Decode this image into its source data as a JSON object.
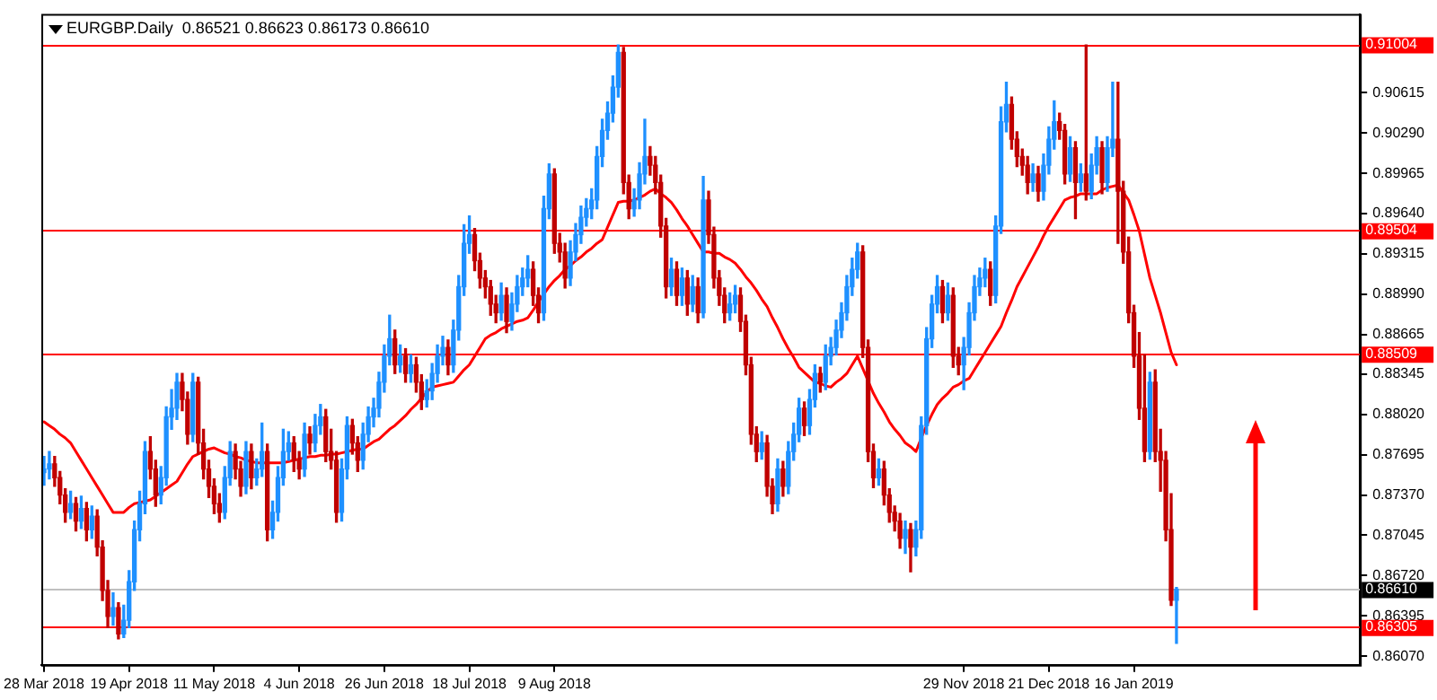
{
  "chart_data": {
    "type": "candlestick",
    "title": "EURGBP.Daily  0.86521 0.86623 0.86173 0.86610",
    "categories": [
      "28 Mar 2018",
      null,
      null,
      null,
      null,
      null,
      null,
      null,
      null,
      null,
      null,
      null,
      null,
      null,
      null,
      null,
      "19 Apr 2018",
      null,
      null,
      null,
      null,
      null,
      null,
      null,
      null,
      null,
      null,
      null,
      null,
      null,
      null,
      null,
      "11 May 2018",
      null,
      null,
      null,
      null,
      null,
      null,
      null,
      null,
      null,
      null,
      null,
      null,
      null,
      null,
      null,
      "4 Jun 2018",
      null,
      null,
      null,
      null,
      null,
      null,
      null,
      null,
      null,
      null,
      null,
      null,
      null,
      null,
      null,
      "26 Jun 2018",
      null,
      null,
      null,
      null,
      null,
      null,
      null,
      null,
      null,
      null,
      null,
      null,
      null,
      null,
      null,
      "18 Jul 2018",
      null,
      null,
      null,
      null,
      null,
      null,
      null,
      null,
      null,
      null,
      null,
      null,
      null,
      null,
      null,
      "9 Aug 2018",
      null,
      null,
      null,
      null,
      null,
      null,
      null,
      null,
      null,
      null,
      null,
      null,
      null,
      null,
      null,
      null,
      null,
      null,
      null,
      null,
      null,
      null,
      null,
      null,
      null,
      null,
      null,
      null,
      null,
      null,
      null,
      null,
      null,
      null,
      null,
      null,
      null,
      null,
      null,
      null,
      null,
      null,
      null,
      null,
      null,
      null,
      null,
      null,
      null,
      null,
      null,
      null,
      null,
      null,
      null,
      null,
      null,
      null,
      null,
      null,
      null,
      null,
      null,
      null,
      null,
      null,
      null,
      null,
      null,
      null,
      null,
      null,
      null,
      null,
      null,
      null,
      "29 Nov 2018",
      null,
      null,
      null,
      null,
      null,
      null,
      null,
      null,
      null,
      null,
      null,
      null,
      null,
      null,
      null,
      "21 Dec 2018",
      null,
      null,
      null,
      null,
      null,
      null,
      null,
      null,
      null,
      null,
      null,
      null,
      null,
      null,
      null,
      "16 Jan 2019",
      null,
      null,
      null,
      null,
      null,
      null,
      null,
      null
    ],
    "ohlc": [
      [
        0.8755,
        0.8768,
        0.8745,
        0.8758
      ],
      [
        0.8758,
        0.8772,
        0.875,
        0.8762
      ],
      [
        0.8762,
        0.8768,
        0.8744,
        0.8751
      ],
      [
        0.8751,
        0.8756,
        0.873,
        0.8737
      ],
      [
        0.8737,
        0.8742,
        0.8715,
        0.8723
      ],
      [
        0.8723,
        0.874,
        0.8718,
        0.873
      ],
      [
        0.873,
        0.8735,
        0.8708,
        0.8716
      ],
      [
        0.8716,
        0.8736,
        0.871,
        0.8726
      ],
      [
        0.8726,
        0.8731,
        0.87,
        0.8709
      ],
      [
        0.8709,
        0.8728,
        0.8702,
        0.872
      ],
      [
        0.872,
        0.8725,
        0.8688,
        0.8695
      ],
      [
        0.8695,
        0.87,
        0.8652,
        0.866
      ],
      [
        0.866,
        0.8668,
        0.863,
        0.8639
      ],
      [
        0.8639,
        0.8658,
        0.8632,
        0.8646
      ],
      [
        0.8646,
        0.865,
        0.8621,
        0.8625
      ],
      [
        0.8625,
        0.8648,
        0.8622,
        0.8636
      ],
      [
        0.8636,
        0.8676,
        0.863,
        0.8667
      ],
      [
        0.8667,
        0.8716,
        0.866,
        0.8709
      ],
      [
        0.8709,
        0.874,
        0.87,
        0.873
      ],
      [
        0.873,
        0.878,
        0.8722,
        0.8772
      ],
      [
        0.8772,
        0.8784,
        0.875,
        0.8758
      ],
      [
        0.8758,
        0.8765,
        0.8728,
        0.8737
      ],
      [
        0.8737,
        0.876,
        0.873,
        0.8751
      ],
      [
        0.8751,
        0.8808,
        0.8745,
        0.88
      ],
      [
        0.88,
        0.8822,
        0.879,
        0.8807
      ],
      [
        0.8807,
        0.8835,
        0.8798,
        0.8828
      ],
      [
        0.8828,
        0.8835,
        0.8805,
        0.8814
      ],
      [
        0.8814,
        0.882,
        0.8778,
        0.8786
      ],
      [
        0.8786,
        0.8835,
        0.878,
        0.8828
      ],
      [
        0.8828,
        0.8832,
        0.877,
        0.8779
      ],
      [
        0.8779,
        0.879,
        0.875,
        0.8758
      ],
      [
        0.8758,
        0.8765,
        0.8735,
        0.8744
      ],
      [
        0.8744,
        0.875,
        0.8722,
        0.873
      ],
      [
        0.873,
        0.8738,
        0.8715,
        0.8723
      ],
      [
        0.8723,
        0.876,
        0.8718,
        0.8751
      ],
      [
        0.8751,
        0.878,
        0.8745,
        0.8772
      ],
      [
        0.8772,
        0.8778,
        0.875,
        0.8758
      ],
      [
        0.8758,
        0.8764,
        0.8736,
        0.8744
      ],
      [
        0.8744,
        0.878,
        0.8738,
        0.8772
      ],
      [
        0.8772,
        0.8778,
        0.8742,
        0.8751
      ],
      [
        0.8751,
        0.8766,
        0.8745,
        0.8758
      ],
      [
        0.8758,
        0.8795,
        0.8752,
        0.8772
      ],
      [
        0.8772,
        0.8778,
        0.87,
        0.8709
      ],
      [
        0.8709,
        0.8732,
        0.8702,
        0.8723
      ],
      [
        0.8723,
        0.876,
        0.8716,
        0.8751
      ],
      [
        0.8751,
        0.879,
        0.8745,
        0.8772
      ],
      [
        0.8772,
        0.8788,
        0.8765,
        0.8779
      ],
      [
        0.8779,
        0.8784,
        0.8756,
        0.8765
      ],
      [
        0.8765,
        0.8772,
        0.875,
        0.8758
      ],
      [
        0.8758,
        0.8795,
        0.8752,
        0.8786
      ],
      [
        0.8786,
        0.8792,
        0.877,
        0.8779
      ],
      [
        0.8779,
        0.8802,
        0.8772,
        0.8793
      ],
      [
        0.8793,
        0.881,
        0.8786,
        0.88
      ],
      [
        0.88,
        0.8806,
        0.8764,
        0.8772
      ],
      [
        0.8772,
        0.879,
        0.8758,
        0.8765
      ],
      [
        0.8765,
        0.8772,
        0.8715,
        0.8723
      ],
      [
        0.8723,
        0.8766,
        0.8716,
        0.8758
      ],
      [
        0.8758,
        0.88,
        0.875,
        0.8793
      ],
      [
        0.8793,
        0.8798,
        0.877,
        0.8779
      ],
      [
        0.8779,
        0.8784,
        0.8756,
        0.8765
      ],
      [
        0.8765,
        0.8795,
        0.8758,
        0.8786
      ],
      [
        0.8786,
        0.8808,
        0.878,
        0.88
      ],
      [
        0.88,
        0.8815,
        0.8792,
        0.8807
      ],
      [
        0.8807,
        0.8836,
        0.88,
        0.8828
      ],
      [
        0.8828,
        0.8858,
        0.882,
        0.8849
      ],
      [
        0.8849,
        0.8882,
        0.8842,
        0.8863
      ],
      [
        0.8863,
        0.887,
        0.8835,
        0.8842
      ],
      [
        0.8842,
        0.8858,
        0.8836,
        0.8849
      ],
      [
        0.8849,
        0.8855,
        0.8828,
        0.8835
      ],
      [
        0.8835,
        0.885,
        0.8828,
        0.8842
      ],
      [
        0.8842,
        0.8848,
        0.882,
        0.8828
      ],
      [
        0.8828,
        0.8834,
        0.8806,
        0.8814
      ],
      [
        0.8814,
        0.883,
        0.8808,
        0.8821
      ],
      [
        0.8821,
        0.8843,
        0.8814,
        0.8835
      ],
      [
        0.8835,
        0.8858,
        0.8828,
        0.8849
      ],
      [
        0.8849,
        0.8865,
        0.8842,
        0.8856
      ],
      [
        0.8856,
        0.8862,
        0.8834,
        0.8842
      ],
      [
        0.8842,
        0.8878,
        0.8836,
        0.887
      ],
      [
        0.887,
        0.8914,
        0.8862,
        0.8905
      ],
      [
        0.8905,
        0.8955,
        0.8898,
        0.894
      ],
      [
        0.894,
        0.8962,
        0.8932,
        0.8947
      ],
      [
        0.8947,
        0.8952,
        0.8918,
        0.8926
      ],
      [
        0.8926,
        0.8932,
        0.8904,
        0.8912
      ],
      [
        0.8912,
        0.8918,
        0.8896,
        0.8905
      ],
      [
        0.8905,
        0.891,
        0.8882,
        0.8891
      ],
      [
        0.8891,
        0.8898,
        0.8876,
        0.8884
      ],
      [
        0.8884,
        0.8908,
        0.8878,
        0.8898
      ],
      [
        0.8898,
        0.8904,
        0.8868,
        0.8877
      ],
      [
        0.8877,
        0.89,
        0.887,
        0.8891
      ],
      [
        0.8891,
        0.8914,
        0.8885,
        0.8905
      ],
      [
        0.8905,
        0.892,
        0.8898,
        0.8912
      ],
      [
        0.8912,
        0.893,
        0.8905,
        0.8919
      ],
      [
        0.8919,
        0.8925,
        0.889,
        0.8898
      ],
      [
        0.8898,
        0.8904,
        0.8876,
        0.8884
      ],
      [
        0.8884,
        0.8978,
        0.8878,
        0.8968
      ],
      [
        0.8968,
        0.9004,
        0.896,
        0.8996
      ],
      [
        0.8996,
        0.9,
        0.8932,
        0.894
      ],
      [
        0.894,
        0.8948,
        0.8925,
        0.8933
      ],
      [
        0.8933,
        0.894,
        0.8904,
        0.8912
      ],
      [
        0.8912,
        0.8942,
        0.8906,
        0.8933
      ],
      [
        0.8933,
        0.8956,
        0.8926,
        0.8947
      ],
      [
        0.8947,
        0.897,
        0.894,
        0.8961
      ],
      [
        0.8961,
        0.8976,
        0.8954,
        0.8968
      ],
      [
        0.8968,
        0.8984,
        0.896,
        0.8975
      ],
      [
        0.8975,
        0.9018,
        0.8968,
        0.901
      ],
      [
        0.901,
        0.904,
        0.9002,
        0.9031
      ],
      [
        0.9031,
        0.9054,
        0.9024,
        0.9045
      ],
      [
        0.9045,
        0.9075,
        0.9038,
        0.9066
      ],
      [
        0.9066,
        0.91,
        0.9058,
        0.9094
      ],
      [
        0.9094,
        0.9098,
        0.898,
        0.8989
      ],
      [
        0.8989,
        0.8995,
        0.896,
        0.8968
      ],
      [
        0.8968,
        0.8984,
        0.8962,
        0.8975
      ],
      [
        0.8975,
        0.9005,
        0.8968,
        0.8996
      ],
      [
        0.8996,
        0.904,
        0.8988,
        0.901
      ],
      [
        0.901,
        0.9018,
        0.8995,
        0.9003
      ],
      [
        0.9003,
        0.901,
        0.898,
        0.8989
      ],
      [
        0.8989,
        0.8995,
        0.8945,
        0.8954
      ],
      [
        0.8954,
        0.896,
        0.8896,
        0.8905
      ],
      [
        0.8905,
        0.8928,
        0.8898,
        0.8919
      ],
      [
        0.8919,
        0.8925,
        0.889,
        0.8898
      ],
      [
        0.8898,
        0.892,
        0.889,
        0.8912
      ],
      [
        0.8912,
        0.8918,
        0.8882,
        0.8891
      ],
      [
        0.8891,
        0.8914,
        0.8885,
        0.8905
      ],
      [
        0.8905,
        0.8912,
        0.8876,
        0.8884
      ],
      [
        0.8884,
        0.8994,
        0.888,
        0.8975
      ],
      [
        0.8975,
        0.8982,
        0.894,
        0.8947
      ],
      [
        0.8947,
        0.8953,
        0.8904,
        0.8912
      ],
      [
        0.8912,
        0.8918,
        0.889,
        0.8898
      ],
      [
        0.8898,
        0.8904,
        0.8876,
        0.8884
      ],
      [
        0.8884,
        0.89,
        0.8878,
        0.8891
      ],
      [
        0.8891,
        0.8906,
        0.8884,
        0.8898
      ],
      [
        0.8898,
        0.8904,
        0.8869,
        0.8877
      ],
      [
        0.8877,
        0.8882,
        0.8834,
        0.8842
      ],
      [
        0.8842,
        0.8848,
        0.8778,
        0.8786
      ],
      [
        0.8786,
        0.8792,
        0.8764,
        0.8772
      ],
      [
        0.8772,
        0.8788,
        0.8766,
        0.8779
      ],
      [
        0.8779,
        0.8785,
        0.8736,
        0.8744
      ],
      [
        0.8744,
        0.875,
        0.8722,
        0.873
      ],
      [
        0.873,
        0.8766,
        0.8724,
        0.8758
      ],
      [
        0.8758,
        0.8764,
        0.8736,
        0.8744
      ],
      [
        0.8744,
        0.878,
        0.8738,
        0.8772
      ],
      [
        0.8772,
        0.8795,
        0.8765,
        0.8786
      ],
      [
        0.8786,
        0.8815,
        0.878,
        0.8807
      ],
      [
        0.8807,
        0.8812,
        0.8785,
        0.8793
      ],
      [
        0.8793,
        0.8822,
        0.8786,
        0.8814
      ],
      [
        0.8814,
        0.8842,
        0.8808,
        0.8835
      ],
      [
        0.8835,
        0.884,
        0.882,
        0.8828
      ],
      [
        0.8828,
        0.8858,
        0.8822,
        0.8849
      ],
      [
        0.8849,
        0.8864,
        0.8842,
        0.8856
      ],
      [
        0.8856,
        0.8878,
        0.885,
        0.887
      ],
      [
        0.887,
        0.8892,
        0.8864,
        0.8884
      ],
      [
        0.8884,
        0.8914,
        0.8878,
        0.8905
      ],
      [
        0.8905,
        0.8928,
        0.8898,
        0.8919
      ],
      [
        0.8919,
        0.894,
        0.8912,
        0.8933
      ],
      [
        0.8933,
        0.8938,
        0.8848,
        0.8856
      ],
      [
        0.8856,
        0.8862,
        0.8764,
        0.8772
      ],
      [
        0.8772,
        0.8778,
        0.8743,
        0.8751
      ],
      [
        0.8751,
        0.8766,
        0.8745,
        0.8758
      ],
      [
        0.8758,
        0.8764,
        0.8729,
        0.8737
      ],
      [
        0.8737,
        0.8742,
        0.8715,
        0.8723
      ],
      [
        0.8723,
        0.8728,
        0.8708,
        0.8716
      ],
      [
        0.8716,
        0.8722,
        0.8694,
        0.8702
      ],
      [
        0.8702,
        0.8716,
        0.869,
        0.8709
      ],
      [
        0.8709,
        0.8714,
        0.8675,
        0.8695
      ],
      [
        0.8695,
        0.8716,
        0.8688,
        0.8709
      ],
      [
        0.8709,
        0.88,
        0.8702,
        0.8793
      ],
      [
        0.8793,
        0.8872,
        0.8786,
        0.8863
      ],
      [
        0.8863,
        0.8898,
        0.8856,
        0.8891
      ],
      [
        0.8891,
        0.8914,
        0.8884,
        0.8905
      ],
      [
        0.8905,
        0.891,
        0.8876,
        0.8884
      ],
      [
        0.8884,
        0.8908,
        0.8878,
        0.8898
      ],
      [
        0.8898,
        0.8904,
        0.884,
        0.8849
      ],
      [
        0.8849,
        0.8856,
        0.8834,
        0.8842
      ],
      [
        0.8842,
        0.8864,
        0.8822,
        0.8856
      ],
      [
        0.8856,
        0.8892,
        0.885,
        0.8884
      ],
      [
        0.8884,
        0.8914,
        0.8878,
        0.8905
      ],
      [
        0.8905,
        0.892,
        0.8898,
        0.8912
      ],
      [
        0.8912,
        0.8928,
        0.8905,
        0.8919
      ],
      [
        0.8919,
        0.8925,
        0.889,
        0.8898
      ],
      [
        0.8898,
        0.8962,
        0.8892,
        0.8954
      ],
      [
        0.8954,
        0.905,
        0.8948,
        0.9038
      ],
      [
        0.9038,
        0.907,
        0.903,
        0.9052
      ],
      [
        0.9052,
        0.9058,
        0.9016,
        0.9024
      ],
      [
        0.9024,
        0.903,
        0.9002,
        0.901
      ],
      [
        0.901,
        0.9016,
        0.8995,
        0.9003
      ],
      [
        0.9003,
        0.901,
        0.898,
        0.8989
      ],
      [
        0.8989,
        0.9004,
        0.8982,
        0.8996
      ],
      [
        0.8996,
        0.9002,
        0.8974,
        0.8982
      ],
      [
        0.8982,
        0.9012,
        0.8975,
        0.9003
      ],
      [
        0.9003,
        0.9034,
        0.8996,
        0.9024
      ],
      [
        0.9024,
        0.9055,
        0.9016,
        0.9038
      ],
      [
        0.9038,
        0.9045,
        0.9024,
        0.9031
      ],
      [
        0.9031,
        0.9036,
        0.8988,
        0.8996
      ],
      [
        0.8996,
        0.9026,
        0.899,
        0.9017
      ],
      [
        0.9017,
        0.9022,
        0.896,
        0.8989
      ],
      [
        0.8989,
        0.9004,
        0.8982,
        0.8996
      ],
      [
        0.8996,
        0.91,
        0.8975,
        0.8982
      ],
      [
        0.8982,
        0.9012,
        0.8976,
        0.9003
      ],
      [
        0.9003,
        0.9026,
        0.8996,
        0.9017
      ],
      [
        0.9017,
        0.9022,
        0.898,
        0.8989
      ],
      [
        0.8989,
        0.9026,
        0.8982,
        0.9017
      ],
      [
        0.9017,
        0.907,
        0.901,
        0.9024
      ],
      [
        0.9024,
        0.907,
        0.894,
        0.8982
      ],
      [
        0.8982,
        0.899,
        0.8924,
        0.8933
      ],
      [
        0.8933,
        0.8945,
        0.8876,
        0.8884
      ],
      [
        0.8884,
        0.889,
        0.884,
        0.8849
      ],
      [
        0.8849,
        0.8868,
        0.8798,
        0.8807
      ],
      [
        0.8807,
        0.885,
        0.8764,
        0.8772
      ],
      [
        0.8772,
        0.8836,
        0.8766,
        0.8828
      ],
      [
        0.8828,
        0.8838,
        0.8764,
        0.8772
      ],
      [
        0.8772,
        0.879,
        0.874,
        0.8765
      ],
      [
        0.8765,
        0.8772,
        0.87,
        0.8709
      ],
      [
        0.8709,
        0.8738,
        0.8648,
        0.86521
      ],
      [
        0.86521,
        0.86623,
        0.86173,
        0.8661
      ]
    ],
    "series": [
      {
        "type": "line",
        "color": "#ff0000",
        "values": [
          0.8796,
          0.8793,
          0.879,
          0.8786,
          0.8783,
          0.8779,
          0.8772,
          0.8765,
          0.8758,
          0.8751,
          0.8744,
          0.8737,
          0.873,
          0.8723,
          0.8723,
          0.8723,
          0.8727,
          0.873,
          0.8731,
          0.8732,
          0.8733,
          0.8736,
          0.8739,
          0.8742,
          0.8745,
          0.8748,
          0.8755,
          0.8762,
          0.8768,
          0.877,
          0.8772,
          0.8774,
          0.8775,
          0.8773,
          0.8771,
          0.877,
          0.8768,
          0.8767,
          0.8765,
          0.8764,
          0.8763,
          0.8763,
          0.8763,
          0.8763,
          0.8763,
          0.8763,
          0.8764,
          0.8765,
          0.8766,
          0.8767,
          0.8768,
          0.8768,
          0.8769,
          0.8769,
          0.877,
          0.877,
          0.8771,
          0.8772,
          0.8773,
          0.8774,
          0.8774,
          0.8777,
          0.878,
          0.8782,
          0.8786,
          0.879,
          0.8793,
          0.8797,
          0.8801,
          0.8806,
          0.881,
          0.8815,
          0.882,
          0.8824,
          0.8825,
          0.8826,
          0.8827,
          0.8828,
          0.8833,
          0.8838,
          0.8842,
          0.8849,
          0.8856,
          0.8863,
          0.8866,
          0.8868,
          0.8871,
          0.8873,
          0.8875,
          0.8877,
          0.8878,
          0.888,
          0.8886,
          0.8893,
          0.8899,
          0.8905,
          0.891,
          0.8914,
          0.8919,
          0.8922,
          0.8926,
          0.8929,
          0.8933,
          0.8936,
          0.894,
          0.8943,
          0.8953,
          0.8963,
          0.8973,
          0.8974,
          0.8974,
          0.8975,
          0.8977,
          0.8979,
          0.8982,
          0.8984,
          0.898,
          0.8977,
          0.8973,
          0.8967,
          0.896,
          0.8954,
          0.8947,
          0.894,
          0.8933,
          0.8933,
          0.8932,
          0.8932,
          0.8929,
          0.8927,
          0.8924,
          0.8919,
          0.8913,
          0.8908,
          0.8902,
          0.8895,
          0.8889,
          0.888,
          0.8872,
          0.8863,
          0.8855,
          0.8848,
          0.884,
          0.8836,
          0.8832,
          0.8828,
          0.8827,
          0.8825,
          0.8824,
          0.8828,
          0.8831,
          0.8835,
          0.8842,
          0.8849,
          0.8839,
          0.8829,
          0.8819,
          0.8811,
          0.8804,
          0.8796,
          0.879,
          0.8785,
          0.8779,
          0.8776,
          0.8772,
          0.8783,
          0.8793,
          0.8802,
          0.881,
          0.8815,
          0.8819,
          0.8824,
          0.8826,
          0.8829,
          0.8831,
          0.8838,
          0.8845,
          0.8852,
          0.8859,
          0.8866,
          0.8873,
          0.8884,
          0.8894,
          0.8905,
          0.8913,
          0.8921,
          0.8929,
          0.8937,
          0.8946,
          0.8954,
          0.8961,
          0.8968,
          0.8975,
          0.8977,
          0.8978,
          0.898,
          0.898,
          0.898,
          0.898,
          0.8983,
          0.8985,
          0.8986,
          0.8987,
          0.8981,
          0.8975,
          0.8963,
          0.895,
          0.8931,
          0.8912,
          0.8898,
          0.8884,
          0.8868,
          0.8852,
          0.8842
        ]
      }
    ],
    "ylim": [
      0.86,
      0.9125
    ],
    "yticks": [
      {
        "value": 0.8607,
        "label": "0.86070"
      },
      0.86395,
      {
        "value": 0.8672,
        "label": "0.86720"
      },
      0.87045,
      {
        "value": 0.8737,
        "label": "0.87370"
      },
      0.87695,
      {
        "value": 0.8802,
        "label": "0.88020"
      },
      0.88345,
      0.88665,
      {
        "value": 0.8899,
        "label": "0.88990"
      },
      0.89315,
      {
        "value": 0.8964,
        "label": "0.89640"
      },
      0.89965,
      {
        "value": 0.9029,
        "label": "0.90290"
      },
      0.90615
    ],
    "ref_lines": [
      {
        "axis": "y",
        "value": 0.91004,
        "label": "0.91004",
        "color": "#ff0000"
      },
      {
        "axis": "y",
        "value": 0.89504,
        "label": "0.89504",
        "color": "#ff0000"
      },
      {
        "axis": "y",
        "value": 0.88509,
        "label": "0.88509",
        "color": "#ff0000"
      },
      {
        "axis": "y",
        "value": 0.86305,
        "label": "0.86305",
        "color": "#ff0000"
      },
      {
        "axis": "y",
        "value": 0.8661,
        "label": "0.86610",
        "color": "#c0c0c0"
      }
    ]
  }
}
